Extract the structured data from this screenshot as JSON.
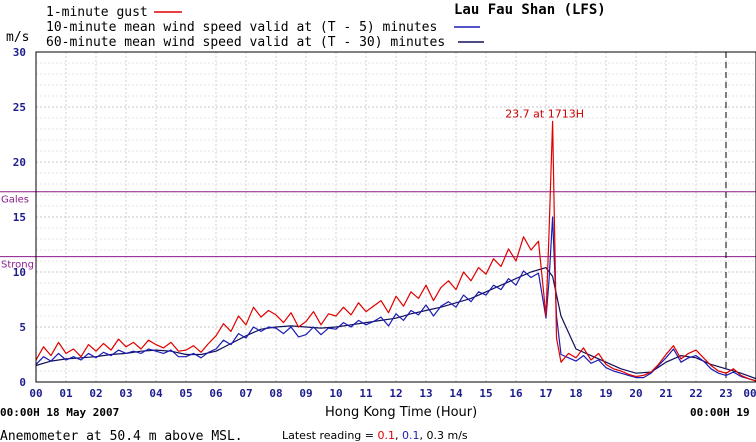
{
  "station": "Lau Fau Shan (LFS)",
  "unit": "m/s",
  "legend": [
    {
      "label": "1-minute gust",
      "color": "#e00000"
    },
    {
      "label": "10-minute mean wind speed valid at (T - 5) minutes",
      "color": "#1c1cb4"
    },
    {
      "label": "60-minute mean wind speed valid at (T - 30) minutes",
      "color": "#10105a"
    }
  ],
  "x_axis_title": "Hong Kong Time (Hour)",
  "start_label": "00:00H 18 May 2007",
  "end_label": "00:00H 19",
  "footer_left": "Anemometer at 50.4 m above MSL.",
  "latest_reading": {
    "prefix": "Latest reading = ",
    "gust": "0.1",
    "sep1": ", ",
    "mean10": "0.1",
    "sep2": ", ",
    "mean60": "0.3",
    "suffix": " m/s",
    "gust_color": "#e00000",
    "mean10_color": "#1c1cb4"
  },
  "chart_data": {
    "type": "line",
    "title": "Lau Fau Shan (LFS)",
    "xlabel": "Hong Kong Time (Hour)",
    "ylabel": "m/s",
    "xlim": [
      0,
      24
    ],
    "ylim": [
      0,
      30
    ],
    "x_tick_labels": [
      "00",
      "01",
      "02",
      "03",
      "04",
      "05",
      "06",
      "07",
      "08",
      "09",
      "10",
      "11",
      "12",
      "13",
      "14",
      "15",
      "16",
      "17",
      "18",
      "19",
      "20",
      "21",
      "22",
      "23",
      "00"
    ],
    "y_tick_labels": [
      "0",
      "5",
      "10",
      "15",
      "20",
      "25",
      "30"
    ],
    "thresholds": [
      {
        "label": "Strong",
        "value": 11.4,
        "color": "#8c1c8c"
      },
      {
        "label": "Gales",
        "value": 17.3,
        "color": "#8c1c8c"
      }
    ],
    "current_time_marker": 23.0,
    "annotation": {
      "text": "23.7 at 1713H",
      "x": 17.22,
      "y": 23.7,
      "color": "#cc0000"
    },
    "grid": true,
    "series": [
      {
        "name": "1-minute gust",
        "color": "#e00000",
        "x": [
          0,
          0.25,
          0.5,
          0.75,
          1,
          1.25,
          1.5,
          1.75,
          2,
          2.25,
          2.5,
          2.75,
          3,
          3.25,
          3.5,
          3.75,
          4,
          4.25,
          4.5,
          4.75,
          5,
          5.25,
          5.5,
          5.75,
          6,
          6.25,
          6.5,
          6.75,
          7,
          7.25,
          7.5,
          7.75,
          8,
          8.25,
          8.5,
          8.75,
          9,
          9.25,
          9.5,
          9.75,
          10,
          10.25,
          10.5,
          10.75,
          11,
          11.25,
          11.5,
          11.75,
          12,
          12.25,
          12.5,
          12.75,
          13,
          13.25,
          13.5,
          13.75,
          14,
          14.25,
          14.5,
          14.75,
          15,
          15.25,
          15.5,
          15.75,
          16,
          16.25,
          16.5,
          16.75,
          17,
          17.1,
          17.22,
          17.35,
          17.5,
          17.75,
          18,
          18.25,
          18.5,
          18.75,
          19,
          19.25,
          19.5,
          19.75,
          20,
          20.25,
          20.5,
          20.75,
          21,
          21.25,
          21.5,
          21.75,
          22,
          22.25,
          22.5,
          22.75,
          23,
          23.25,
          23.5,
          23.75,
          24
        ],
        "y": [
          2.0,
          3.2,
          2.4,
          3.6,
          2.6,
          3.0,
          2.3,
          3.4,
          2.8,
          3.5,
          2.9,
          3.9,
          3.2,
          3.6,
          3.0,
          3.8,
          3.4,
          3.1,
          3.6,
          2.8,
          2.9,
          3.3,
          2.7,
          3.5,
          4.2,
          5.3,
          4.6,
          6.0,
          5.2,
          6.8,
          5.9,
          6.5,
          6.1,
          5.4,
          6.3,
          5.0,
          5.5,
          6.4,
          5.2,
          6.2,
          6.0,
          6.8,
          6.1,
          7.2,
          6.4,
          6.9,
          7.4,
          6.3,
          7.8,
          6.9,
          8.2,
          7.6,
          8.8,
          7.4,
          8.6,
          9.2,
          8.4,
          10.0,
          9.2,
          10.4,
          9.8,
          11.2,
          10.5,
          12.1,
          11.0,
          13.2,
          12.0,
          12.8,
          6.0,
          13.5,
          23.7,
          4.0,
          1.8,
          2.6,
          2.2,
          3.1,
          2.0,
          2.6,
          1.6,
          1.2,
          1.0,
          0.7,
          0.5,
          0.6,
          0.9,
          1.6,
          2.5,
          3.3,
          2.1,
          2.6,
          2.9,
          2.2,
          1.5,
          1.0,
          0.8,
          1.2,
          0.6,
          0.3,
          0.1
        ]
      },
      {
        "name": "10-minute mean wind speed valid at (T - 5) minutes",
        "color": "#1c1cb4",
        "x": [
          0,
          0.25,
          0.5,
          0.75,
          1,
          1.25,
          1.5,
          1.75,
          2,
          2.25,
          2.5,
          2.75,
          3,
          3.25,
          3.5,
          3.75,
          4,
          4.25,
          4.5,
          4.75,
          5,
          5.25,
          5.5,
          5.75,
          6,
          6.25,
          6.5,
          6.75,
          7,
          7.25,
          7.5,
          7.75,
          8,
          8.25,
          8.5,
          8.75,
          9,
          9.25,
          9.5,
          9.75,
          10,
          10.25,
          10.5,
          10.75,
          11,
          11.25,
          11.5,
          11.75,
          12,
          12.25,
          12.5,
          12.75,
          13,
          13.25,
          13.5,
          13.75,
          14,
          14.25,
          14.5,
          14.75,
          15,
          15.25,
          15.5,
          15.75,
          16,
          16.25,
          16.5,
          16.75,
          17,
          17.1,
          17.22,
          17.35,
          17.5,
          17.75,
          18,
          18.25,
          18.5,
          18.75,
          19,
          19.25,
          19.5,
          19.75,
          20,
          20.25,
          20.5,
          20.75,
          21,
          21.25,
          21.5,
          21.75,
          22,
          22.25,
          22.5,
          22.75,
          23,
          23.25,
          23.5,
          23.75,
          24
        ],
        "y": [
          1.6,
          2.3,
          1.9,
          2.6,
          2.0,
          2.3,
          2.0,
          2.6,
          2.2,
          2.7,
          2.4,
          2.9,
          2.6,
          2.8,
          2.6,
          3.0,
          2.8,
          2.6,
          2.9,
          2.3,
          2.3,
          2.6,
          2.2,
          2.7,
          3.0,
          3.8,
          3.4,
          4.4,
          4.0,
          5.0,
          4.6,
          5.0,
          4.9,
          4.4,
          5.0,
          4.1,
          4.3,
          5.0,
          4.3,
          4.9,
          4.8,
          5.4,
          5.0,
          5.6,
          5.2,
          5.5,
          5.9,
          5.1,
          6.2,
          5.6,
          6.5,
          6.1,
          7.0,
          6.0,
          6.9,
          7.3,
          6.8,
          7.9,
          7.3,
          8.2,
          7.9,
          8.8,
          8.4,
          9.4,
          8.8,
          10.1,
          9.5,
          9.9,
          5.8,
          9.2,
          15.0,
          6.0,
          2.5,
          2.2,
          1.9,
          2.4,
          1.7,
          2.0,
          1.3,
          1.0,
          0.8,
          0.6,
          0.4,
          0.4,
          0.8,
          1.5,
          2.2,
          3.0,
          1.8,
          2.2,
          2.4,
          1.9,
          1.2,
          0.8,
          0.6,
          0.9,
          0.5,
          0.3,
          0.1
        ]
      },
      {
        "name": "60-minute mean wind speed valid at (T - 30) minutes",
        "color": "#10105a",
        "x": [
          0,
          0.5,
          1,
          1.5,
          2,
          2.5,
          3,
          3.5,
          4,
          4.5,
          5,
          5.5,
          6,
          6.5,
          7,
          7.5,
          8,
          8.5,
          9,
          9.5,
          10,
          10.5,
          11,
          11.5,
          12,
          12.5,
          13,
          13.5,
          14,
          14.5,
          15,
          15.5,
          16,
          16.5,
          17,
          17.22,
          17.5,
          18,
          18.5,
          19,
          19.5,
          20,
          20.5,
          21,
          21.5,
          22,
          22.5,
          23,
          23.5,
          24
        ],
        "y": [
          1.5,
          1.9,
          2.1,
          2.2,
          2.3,
          2.5,
          2.6,
          2.8,
          2.9,
          2.8,
          2.5,
          2.5,
          2.8,
          3.5,
          4.2,
          4.8,
          5.0,
          5.1,
          5.0,
          4.9,
          5.0,
          5.2,
          5.4,
          5.6,
          5.8,
          6.2,
          6.5,
          6.8,
          7.2,
          7.6,
          8.2,
          8.8,
          9.4,
          10.0,
          10.4,
          9.6,
          6.0,
          3.0,
          2.4,
          1.8,
          1.2,
          0.8,
          0.9,
          1.8,
          2.4,
          2.2,
          1.6,
          1.2,
          0.8,
          0.3
        ]
      }
    ]
  }
}
